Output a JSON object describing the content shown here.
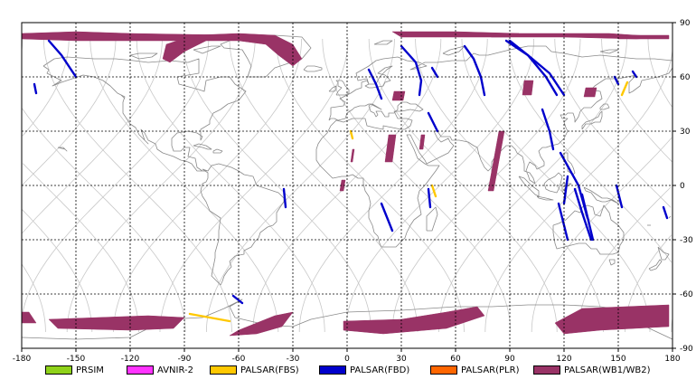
{
  "map": {
    "lon_ticks": [
      "-180",
      "-150",
      "-120",
      "-90",
      "-60",
      "-30",
      "0",
      "30",
      "60",
      "90",
      "120",
      "150",
      "180"
    ],
    "lat_ticks": [
      "90",
      "60",
      "30",
      "0",
      "-30",
      "-60",
      "-90"
    ],
    "lon_range": [
      -180,
      180
    ],
    "lat_range": [
      -90,
      90
    ],
    "grid": "dashed",
    "colors": {
      "coastline": "#8a8a8a",
      "orbit": "#c8c8c8",
      "grid": "#000000"
    }
  },
  "legend": [
    {
      "label": "PRSIM",
      "color": "#8fd21a"
    },
    {
      "label": "AVNIR-2",
      "color": "#ff33ff"
    },
    {
      "label": "PALSAR(FBS)",
      "color": "#ffc800"
    },
    {
      "label": "PALSAR(FBD)",
      "color": "#0000cc"
    },
    {
      "label": "PALSAR(PLR)",
      "color": "#ff6600"
    },
    {
      "label": "PALSAR(WB1/WB2)",
      "color": "#993366"
    }
  ],
  "swaths": {
    "wb": [
      [
        [
          -180,
          84
        ],
        [
          -150,
          85
        ],
        [
          -120,
          84
        ],
        [
          -60,
          83
        ],
        [
          -57,
          82
        ],
        [
          -90,
          80
        ],
        [
          -150,
          80
        ],
        [
          -180,
          81
        ]
      ],
      [
        [
          -100,
          78
        ],
        [
          -85,
          83
        ],
        [
          -60,
          84
        ],
        [
          -40,
          83
        ],
        [
          -30,
          78
        ],
        [
          -25,
          70
        ],
        [
          -30,
          66
        ],
        [
          -38,
          72
        ],
        [
          -45,
          78
        ],
        [
          -60,
          80
        ],
        [
          -78,
          80
        ],
        [
          -90,
          74
        ],
        [
          -98,
          68
        ],
        [
          -102,
          70
        ]
      ],
      [
        [
          25,
          85
        ],
        [
          60,
          85
        ],
        [
          95,
          84
        ],
        [
          90,
          82
        ],
        [
          60,
          82
        ],
        [
          30,
          82
        ]
      ],
      [
        [
          70,
          84
        ],
        [
          100,
          84
        ],
        [
          145,
          84
        ],
        [
          160,
          83
        ],
        [
          178,
          82
        ],
        [
          160,
          81
        ],
        [
          120,
          82
        ],
        [
          80,
          82
        ]
      ],
      [
        [
          150,
          83
        ],
        [
          178,
          83
        ],
        [
          178,
          81
        ],
        [
          150,
          81
        ]
      ],
      [
        [
          26,
          52
        ],
        [
          32,
          52
        ],
        [
          31,
          47
        ],
        [
          25,
          47
        ]
      ],
      [
        [
          98,
          58
        ],
        [
          103,
          58
        ],
        [
          102,
          50
        ],
        [
          97,
          50
        ]
      ],
      [
        [
          132,
          54
        ],
        [
          138,
          54
        ],
        [
          137,
          49
        ],
        [
          131,
          49
        ]
      ],
      [
        [
          23,
          28
        ],
        [
          27,
          28
        ],
        [
          25,
          13
        ],
        [
          21,
          13
        ]
      ],
      [
        [
          3,
          20
        ],
        [
          4,
          20
        ],
        [
          3,
          13
        ],
        [
          2,
          13
        ]
      ],
      [
        [
          -3,
          3
        ],
        [
          -1,
          3
        ],
        [
          -2,
          -3
        ],
        [
          -4,
          -3
        ]
      ],
      [
        [
          41,
          28
        ],
        [
          43,
          28
        ],
        [
          42,
          20
        ],
        [
          40,
          20
        ]
      ],
      [
        [
          84,
          30
        ],
        [
          87,
          30
        ],
        [
          81,
          -3
        ],
        [
          78,
          -3
        ]
      ],
      [
        [
          -180,
          -70
        ],
        [
          -176,
          -70
        ],
        [
          -172,
          -76
        ],
        [
          -180,
          -76
        ]
      ],
      [
        [
          -165,
          -74
        ],
        [
          -110,
          -72
        ],
        [
          -90,
          -73
        ],
        [
          -96,
          -79
        ],
        [
          -120,
          -80
        ],
        [
          -160,
          -79
        ]
      ],
      [
        [
          -60,
          -80
        ],
        [
          -40,
          -72
        ],
        [
          -30,
          -70
        ],
        [
          -36,
          -78
        ],
        [
          -50,
          -82
        ],
        [
          -65,
          -83
        ]
      ],
      [
        [
          -2,
          -75
        ],
        [
          30,
          -74
        ],
        [
          55,
          -70
        ],
        [
          72,
          -67
        ],
        [
          76,
          -72
        ],
        [
          55,
          -79
        ],
        [
          20,
          -82
        ],
        [
          -2,
          -80
        ]
      ],
      [
        [
          130,
          -68
        ],
        [
          178,
          -66
        ],
        [
          178,
          -78
        ],
        [
          140,
          -80
        ],
        [
          120,
          -82
        ],
        [
          115,
          -76
        ]
      ]
    ],
    "fbd": [
      [
        [
          -165,
          80
        ],
        [
          -158,
          72
        ],
        [
          -150,
          60
        ]
      ],
      [
        [
          -173,
          56
        ],
        [
          -172,
          51
        ]
      ],
      [
        [
          12,
          64
        ],
        [
          16,
          56
        ],
        [
          19,
          48
        ]
      ],
      [
        [
          30,
          77
        ],
        [
          38,
          68
        ],
        [
          41,
          58
        ],
        [
          40,
          50
        ]
      ],
      [
        [
          47,
          65
        ],
        [
          50,
          60
        ]
      ],
      [
        [
          65,
          77
        ],
        [
          70,
          70
        ],
        [
          74,
          60
        ],
        [
          76,
          50
        ]
      ],
      [
        [
          88,
          80
        ],
        [
          100,
          72
        ],
        [
          112,
          62
        ],
        [
          120,
          50
        ]
      ],
      [
        [
          45,
          40
        ],
        [
          50,
          30
        ]
      ],
      [
        [
          108,
          42
        ],
        [
          112,
          30
        ],
        [
          114,
          20
        ]
      ],
      [
        [
          90,
          80
        ],
        [
          100,
          72
        ],
        [
          110,
          60
        ],
        [
          116,
          50
        ]
      ],
      [
        [
          130,
          -5
        ],
        [
          136,
          -30
        ]
      ],
      [
        [
          -35,
          -2
        ],
        [
          -34,
          -12
        ]
      ],
      [
        [
          19,
          -10
        ],
        [
          25,
          -25
        ]
      ],
      [
        [
          45,
          -2
        ],
        [
          46,
          -12
        ]
      ],
      [
        [
          117,
          -10
        ],
        [
          122,
          -30
        ]
      ],
      [
        [
          122,
          5
        ],
        [
          120,
          -10
        ]
      ],
      [
        [
          118,
          18
        ],
        [
          128,
          0
        ],
        [
          133,
          -18
        ]
      ],
      [
        [
          126,
          -2
        ],
        [
          130,
          -15
        ],
        [
          135,
          -30
        ]
      ],
      [
        [
          149,
          0
        ],
        [
          152,
          -12
        ]
      ],
      [
        [
          175,
          -12
        ],
        [
          177,
          -18
        ]
      ],
      [
        [
          -63,
          -61
        ],
        [
          -58,
          -65
        ]
      ],
      [
        [
          148,
          60
        ],
        [
          150,
          56
        ]
      ],
      [
        [
          158,
          63
        ],
        [
          160,
          60
        ]
      ]
    ],
    "fbs": [
      [
        [
          -87,
          -71
        ],
        [
          -65,
          -75
        ]
      ],
      [
        [
          155,
          57
        ],
        [
          152,
          50
        ]
      ],
      [
        [
          2,
          30
        ],
        [
          3,
          26
        ]
      ],
      [
        [
          47,
          0
        ],
        [
          49,
          -6
        ]
      ]
    ]
  }
}
